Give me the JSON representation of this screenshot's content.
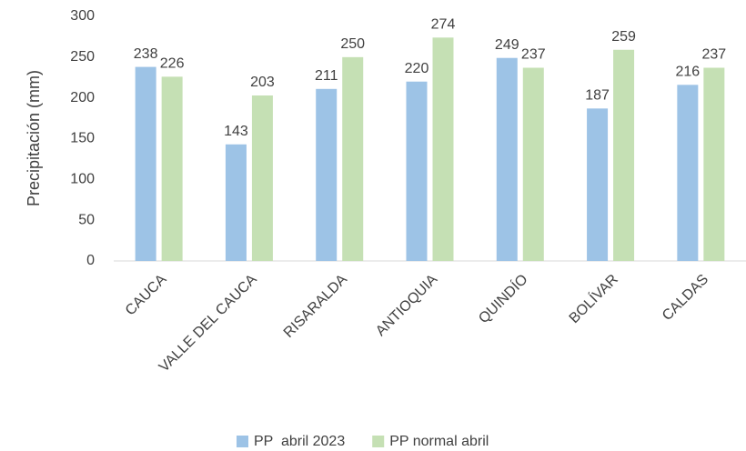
{
  "chart_data": {
    "type": "bar",
    "y_label": "Precipitación (mm)",
    "categories": [
      "CAUCA",
      "VALLE DEL CAUCA",
      "RISARALDA",
      "ANTIOQUIA",
      "QUINDÍO",
      "BOLÍVAR",
      "CALDAS"
    ],
    "series": [
      {
        "name": "PP  abril 2023",
        "color": "#9dc3e6",
        "values": [
          238,
          143,
          211,
          220,
          249,
          187,
          216
        ]
      },
      {
        "name": "PP normal abril",
        "color": "#c5e0b4",
        "values": [
          226,
          203,
          250,
          274,
          237,
          259,
          237
        ]
      }
    ],
    "ylim": [
      0,
      300
    ],
    "yticks": [
      0,
      50,
      100,
      150,
      200,
      250,
      300
    ],
    "grid": false,
    "legend": "bottom"
  }
}
